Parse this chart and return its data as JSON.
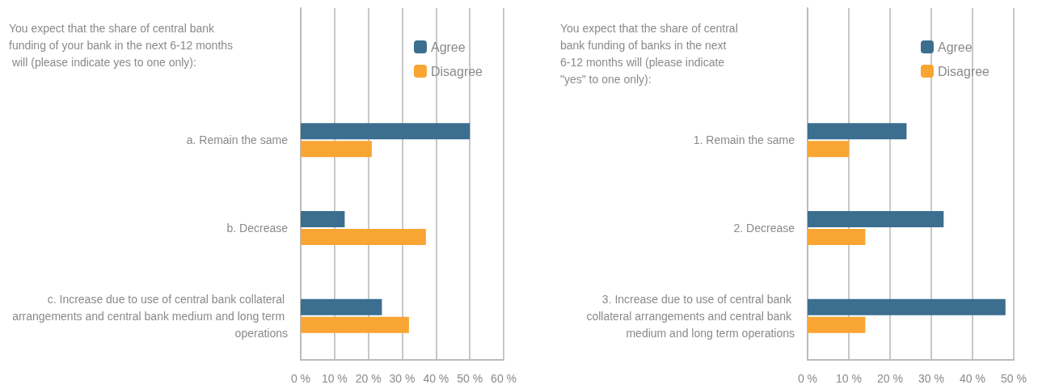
{
  "chart_data": [
    {
      "type": "bar",
      "orientation": "horizontal",
      "annotations": [
        "You expect that the share of central bank funding of your bank in the next 6-12 months will (please indicate yes to one only):"
      ],
      "categories": [
        null,
        "a. Remain the same",
        "b. Decrease",
        "c. Increase due to use of central bank collateral arrangements and central bank medium and long term operations"
      ],
      "series": [
        {
          "name": "Agree",
          "color": "#3b6e8f",
          "values": [
            null,
            50,
            13,
            24
          ]
        },
        {
          "name": "Disagree",
          "color": "#f9a533",
          "values": [
            null,
            21,
            37,
            32
          ]
        }
      ],
      "xlim": [
        0,
        60
      ],
      "xticks": [
        {
          "value": 0,
          "label": "0 %"
        },
        {
          "value": 10,
          "label": "10 %"
        },
        {
          "value": 20,
          "label": "20 %"
        },
        {
          "value": 30,
          "label": "30 %"
        },
        {
          "value": 40,
          "label": "40 %"
        },
        {
          "value": 50,
          "label": "50 %"
        },
        {
          "value": 60,
          "label": "60 %"
        }
      ],
      "grid": "x",
      "legend": "top right"
    },
    {
      "type": "bar",
      "orientation": "horizontal",
      "annotations": [
        "You expect that the share of central bank funding of banks in the next 6-12 months will (please indicate \"yes\" to one only):"
      ],
      "categories": [
        null,
        "1. Remain the same",
        "2. Decrease",
        "3. Increase due to use of central bank collateral arrangements and central bank medium and long term operations"
      ],
      "series": [
        {
          "name": "Agree",
          "color": "#3b6e8f",
          "values": [
            null,
            24,
            33,
            48
          ]
        },
        {
          "name": "Disagree",
          "color": "#f9a533",
          "values": [
            null,
            10,
            14,
            14
          ]
        }
      ],
      "xlim": [
        0,
        50
      ],
      "xticks": [
        {
          "value": 0,
          "label": "0 %"
        },
        {
          "value": 10,
          "label": "10 %"
        },
        {
          "value": 20,
          "label": "20 %"
        },
        {
          "value": 30,
          "label": "30 %"
        },
        {
          "value": 40,
          "label": "40 %"
        },
        {
          "value": 50,
          "label": "50 %"
        }
      ],
      "grid": "x",
      "legend": "top right"
    }
  ]
}
